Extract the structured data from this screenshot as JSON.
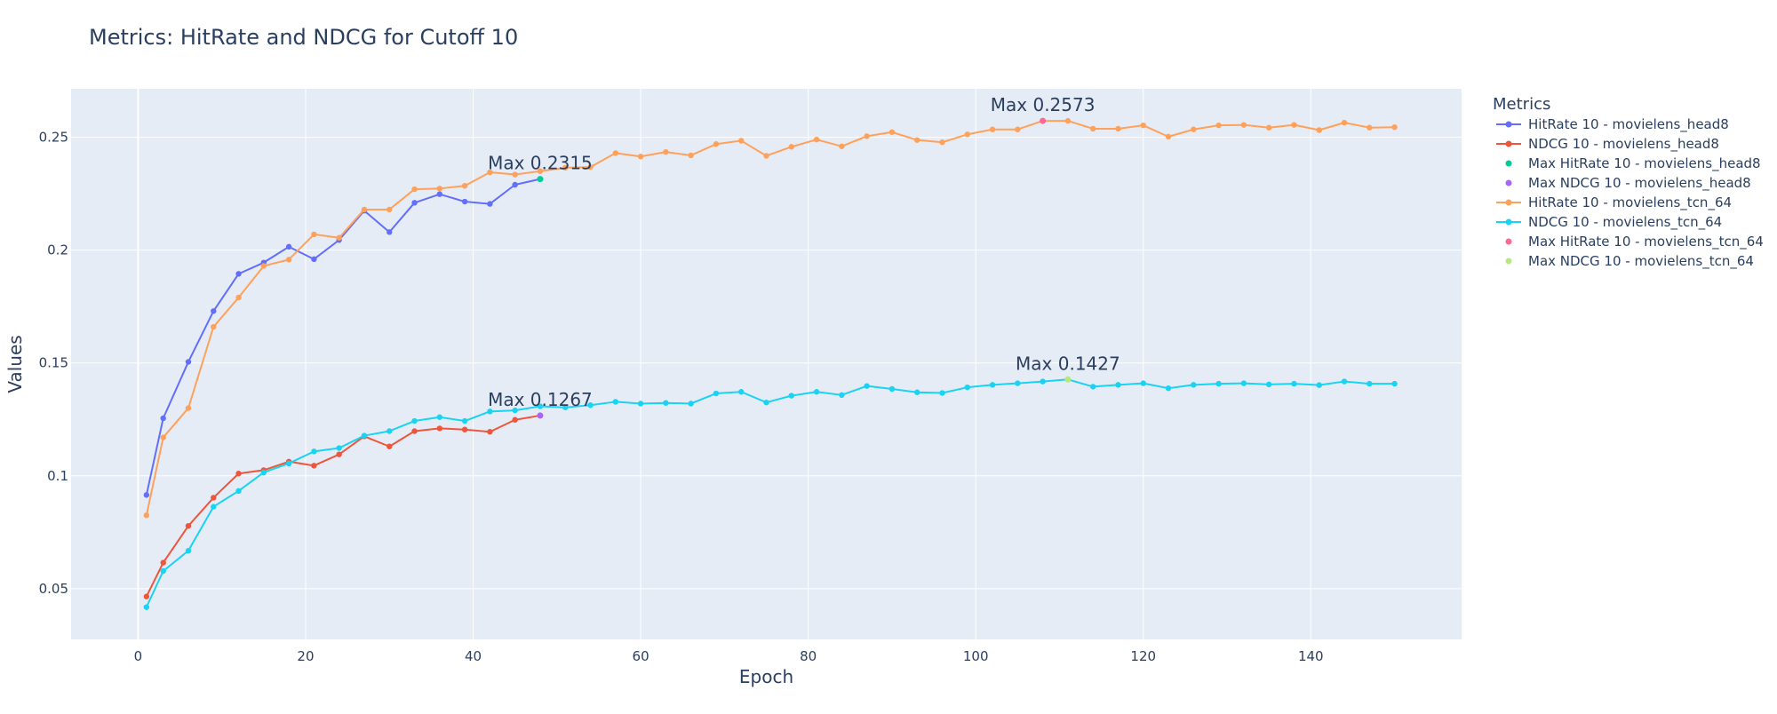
{
  "chart_data": {
    "type": "line",
    "title": "Metrics: HitRate and NDCG for Cutoff 10",
    "xlabel": "Epoch",
    "ylabel": "Values",
    "xlim": [
      -8,
      158
    ],
    "ylim": [
      0.0275,
      0.2715
    ],
    "xticks": [
      0,
      20,
      40,
      60,
      80,
      100,
      120,
      140
    ],
    "yticks": [
      0.05,
      0.1,
      0.15,
      0.2,
      0.25
    ],
    "ytick_labels": [
      "0.05",
      "0.1",
      "0.15",
      "0.2",
      "0.25"
    ],
    "grid": true,
    "legend_title": "Metrics",
    "legend_position": "right",
    "series": [
      {
        "name": "HitRate 10 - movielens_head8",
        "color": "#636efa",
        "mode": "lines+markers",
        "x": [
          1,
          3,
          6,
          9,
          12,
          15,
          18,
          21,
          24,
          27,
          30,
          33,
          36,
          39,
          42,
          45,
          48
        ],
        "y": [
          0.0915,
          0.1255,
          0.1505,
          0.173,
          0.1895,
          0.1945,
          0.2015,
          0.196,
          0.2045,
          0.2175,
          0.208,
          0.221,
          0.2248,
          0.2215,
          0.2205,
          0.229,
          0.2315
        ]
      },
      {
        "name": "NDCG 10 - movielens_head8",
        "color": "#ef553b",
        "mode": "lines+markers",
        "x": [
          1,
          3,
          6,
          9,
          12,
          15,
          18,
          21,
          24,
          27,
          30,
          33,
          36,
          39,
          42,
          45,
          48
        ],
        "y": [
          0.0465,
          0.0615,
          0.0778,
          0.0903,
          0.101,
          0.1025,
          0.1063,
          0.1045,
          0.1095,
          0.1175,
          0.113,
          0.1198,
          0.121,
          0.1205,
          0.1195,
          0.1248,
          0.1267
        ]
      },
      {
        "name": "Max HitRate 10 - movielens_head8",
        "color": "#00cc96",
        "mode": "markers",
        "x": [
          48
        ],
        "y": [
          0.2315
        ]
      },
      {
        "name": "Max NDCG 10 - movielens_head8",
        "color": "#ab63fa",
        "mode": "markers",
        "x": [
          48
        ],
        "y": [
          0.1267
        ]
      },
      {
        "name": "HitRate 10 - movielens_tcn_64",
        "color": "#ffa15a",
        "mode": "lines+markers",
        "x": [
          1,
          3,
          6,
          9,
          12,
          15,
          18,
          21,
          24,
          27,
          30,
          33,
          36,
          39,
          42,
          45,
          48,
          51,
          54,
          57,
          60,
          63,
          66,
          69,
          72,
          75,
          78,
          81,
          84,
          87,
          90,
          93,
          96,
          99,
          102,
          105,
          108,
          111,
          114,
          117,
          120,
          123,
          126,
          129,
          132,
          135,
          138,
          141,
          144,
          147,
          150
        ],
        "y": [
          0.0825,
          0.117,
          0.13,
          0.166,
          0.179,
          0.193,
          0.1958,
          0.207,
          0.2055,
          0.218,
          0.218,
          0.227,
          0.2273,
          0.2285,
          0.2345,
          0.2335,
          0.235,
          0.2365,
          0.2368,
          0.243,
          0.2415,
          0.2435,
          0.242,
          0.247,
          0.2485,
          0.2418,
          0.2458,
          0.249,
          0.246,
          0.2505,
          0.2523,
          0.2488,
          0.2478,
          0.2513,
          0.2535,
          0.2535,
          0.2573,
          0.2573,
          0.2538,
          0.2538,
          0.2553,
          0.2503,
          0.2535,
          0.2553,
          0.2555,
          0.2543,
          0.2555,
          0.2532,
          0.2565,
          0.2543,
          0.2545
        ]
      },
      {
        "name": "NDCG 10 - movielens_tcn_64",
        "color": "#19d3f3",
        "mode": "lines+markers",
        "x": [
          1,
          3,
          6,
          9,
          12,
          15,
          18,
          21,
          24,
          27,
          30,
          33,
          36,
          39,
          42,
          45,
          48,
          51,
          54,
          57,
          60,
          63,
          66,
          69,
          72,
          75,
          78,
          81,
          84,
          87,
          90,
          93,
          96,
          99,
          102,
          105,
          108,
          111,
          114,
          117,
          120,
          123,
          126,
          129,
          132,
          135,
          138,
          141,
          144,
          147,
          150
        ],
        "y": [
          0.0418,
          0.0578,
          0.0668,
          0.0863,
          0.0933,
          0.1015,
          0.1055,
          0.1108,
          0.1123,
          0.1178,
          0.1198,
          0.1243,
          0.126,
          0.1243,
          0.1285,
          0.129,
          0.1308,
          0.1303,
          0.1313,
          0.1328,
          0.132,
          0.1323,
          0.132,
          0.1365,
          0.1372,
          0.1325,
          0.1355,
          0.1372,
          0.1358,
          0.1398,
          0.1385,
          0.137,
          0.1367,
          0.1392,
          0.1403,
          0.141,
          0.1418,
          0.1427,
          0.1395,
          0.1403,
          0.141,
          0.1388,
          0.1403,
          0.1408,
          0.141,
          0.1405,
          0.1408,
          0.1402,
          0.1418,
          0.1408,
          0.1408
        ]
      },
      {
        "name": "Max HitRate 10 - movielens_tcn_64",
        "color": "#ff6692",
        "mode": "markers",
        "x": [
          108
        ],
        "y": [
          0.2573
        ]
      },
      {
        "name": "Max NDCG 10 - movielens_tcn_64",
        "color": "#b6e880",
        "mode": "markers",
        "x": [
          111
        ],
        "y": [
          0.1427
        ]
      }
    ],
    "annotations": [
      {
        "text": "Max 0.2315",
        "x": 48,
        "y": 0.2315
      },
      {
        "text": "Max 0.1267",
        "x": 48,
        "y": 0.1267
      },
      {
        "text": "Max 0.2573",
        "x": 108,
        "y": 0.2573
      },
      {
        "text": "Max 0.1427",
        "x": 111,
        "y": 0.1427
      }
    ]
  }
}
